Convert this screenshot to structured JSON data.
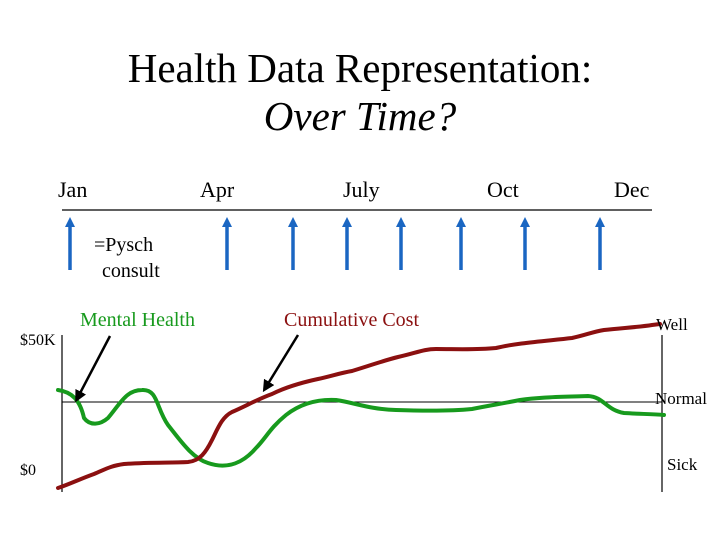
{
  "slide": {
    "title_line1": "Health Data Representation:",
    "title_line2": "Over Time?"
  },
  "timeline": {
    "months": [
      "Jan",
      "Apr",
      "July",
      "Oct",
      "Dec"
    ],
    "event_marker_label": "=Pysch consult",
    "event_marker_label_lines": [
      "=Pysch",
      "consult"
    ],
    "event_marker_color": "#1a66c2"
  },
  "axis": {
    "top_label": "$50K",
    "bottom_label": "$0"
  },
  "states": {
    "well": "Well",
    "normal": "Normal",
    "sick": "Sick"
  },
  "series_labels": {
    "mental_health": "Mental Health",
    "cumulative_cost": "Cumulative Cost"
  },
  "colors": {
    "mental_health": "#179a1d",
    "cumulative_cost": "#8b1010",
    "axes": "#000000"
  }
}
